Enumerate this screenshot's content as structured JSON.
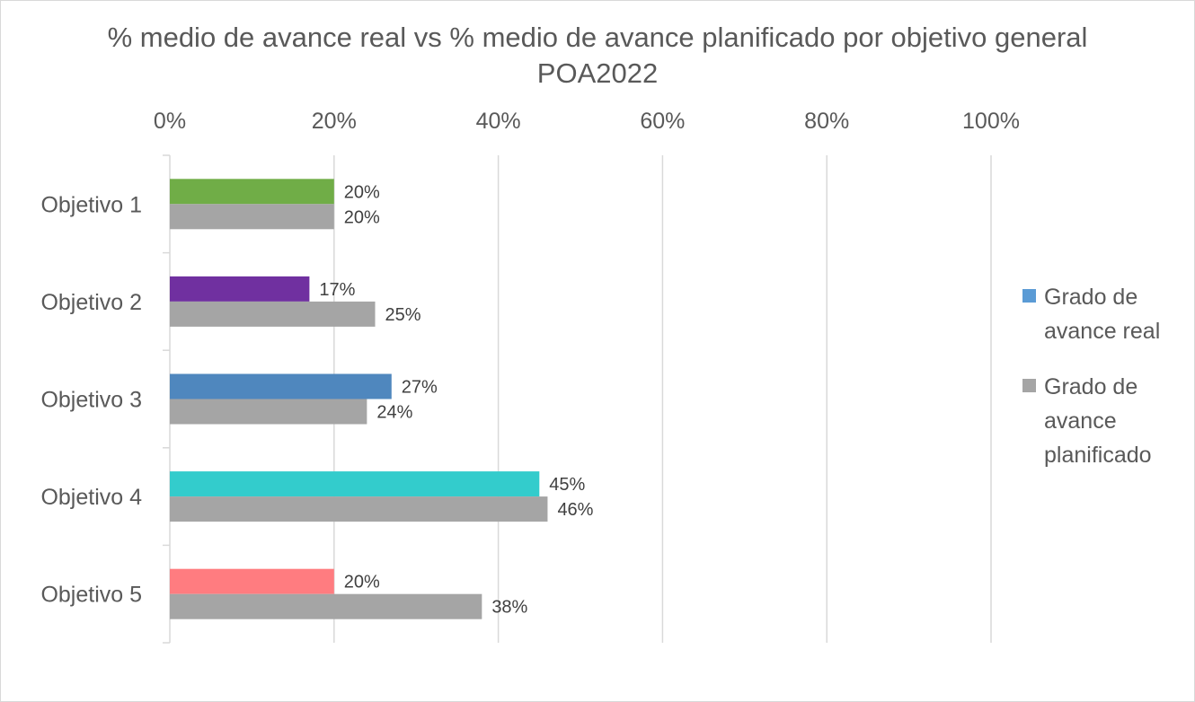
{
  "chart_data": {
    "type": "bar",
    "orientation": "horizontal",
    "title": "% medio de avance real vs % medio de avance planificado por objetivo general POA2022",
    "xlim": [
      0,
      100
    ],
    "x_ticks": [
      "0%",
      "20%",
      "40%",
      "60%",
      "80%",
      "100%"
    ],
    "categories": [
      "Objetivo 1",
      "Objetivo 2",
      "Objetivo 3",
      "Objetivo 4",
      "Objetivo 5"
    ],
    "series": [
      {
        "name": "Grado de avance real",
        "values": [
          20,
          17,
          27,
          45,
          20
        ],
        "labels": [
          "20%",
          "17%",
          "27%",
          "45%",
          "20%"
        ],
        "colors": [
          "#70ad47",
          "#7030a0",
          "#4f87be",
          "#33cccc",
          "#ff7c80"
        ],
        "legend_color": "#5b9bd5"
      },
      {
        "name": "Grado de avance planificado",
        "values": [
          20,
          25,
          24,
          46,
          38
        ],
        "labels": [
          "20%",
          "25%",
          "24%",
          "46%",
          "38%"
        ],
        "color": "#a5a5a5",
        "legend_color": "#a5a5a5"
      }
    ],
    "grid": true,
    "legend_position": "right",
    "axis_position": "top"
  }
}
